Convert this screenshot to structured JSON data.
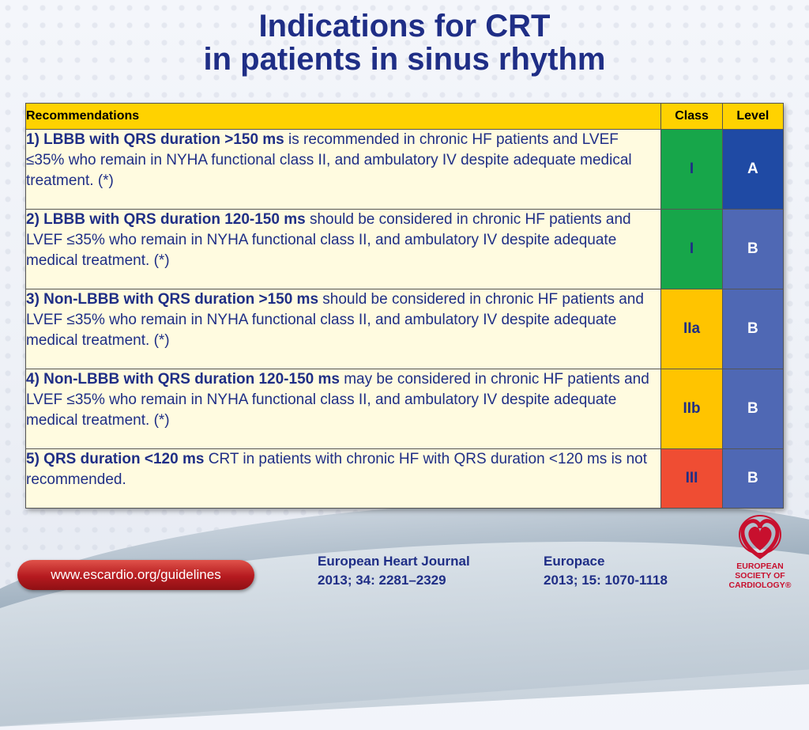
{
  "slide": {
    "title_line1": "Indications for CRT",
    "title_line2": "in patients in sinus rhythm"
  },
  "table": {
    "headers": {
      "recommendations": "Recommendations",
      "class": "Class",
      "level": "Level"
    },
    "rows": [
      {
        "bold": "1) LBBB with QRS duration >150 ms",
        "rest": " is recommended in chronic HF patients and LVEF ≤35% who remain in NYHA functional class II, and ambulatory IV despite adequate medical treatment. (*)",
        "class": "I",
        "level": "A",
        "class_color": "#17a64a",
        "level_color": "#1f4aa4"
      },
      {
        "bold": "2) LBBB with QRS duration 120-150 ms",
        "rest": " should be considered  in chronic HF patients and LVEF ≤35% who remain in NYHA functional class II, and ambulatory IV despite adequate medical treatment. (*)",
        "class": "I",
        "level": "B",
        "class_color": "#17a64a",
        "level_color": "#4f68b4"
      },
      {
        "bold": "3) Non-LBBB with QRS duration >150 ms",
        "rest": " should be considered  in chronic HF patients and LVEF ≤35% who remain in NYHA functional class II, and ambulatory IV despite adequate medical treatment. (*)",
        "class": "IIa",
        "level": "B",
        "class_color": "#ffc400",
        "level_color": "#4f68b4"
      },
      {
        "bold": "4) Non-LBBB with QRS duration 120-150 ms",
        "rest": " may be considered  in chronic HF patients and LVEF ≤35% who remain in NYHA functional class II, and ambulatory IV despite adequate medical treatment. (*)",
        "class": "IIb",
        "level": "B",
        "class_color": "#ffc400",
        "level_color": "#4f68b4"
      },
      {
        "bold": "5) QRS duration <120 ms",
        "rest": " CRT in patients with chronic HF with QRS duration <120 ms is not recommended.",
        "class": "III",
        "level": "B",
        "class_color": "#ef4d33",
        "level_color": "#4f68b4"
      }
    ]
  },
  "footer": {
    "link": "www.escardio.org/guidelines",
    "ref1_line1": "European Heart Journal",
    "ref1_line2": "2013; 34: 2281–2329",
    "ref2_line1": "Europace",
    "ref2_line2": "2013; 15: 1070-1118",
    "logo_line1": "EUROPEAN",
    "logo_line2": "SOCIETY OF",
    "logo_line3": "CARDIOLOGY®",
    "logo_icon": "heart-logo-icon"
  }
}
